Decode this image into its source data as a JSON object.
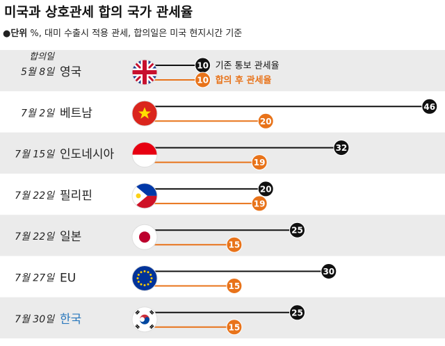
{
  "chart_data": {
    "type": "dumbbell",
    "title": "미국과 상호관세 합의 국가 관세율",
    "subtitle_label": "●단위",
    "subtitle": " %, 대미 수출시 적용 관세, 합의일은 미국 현지시간 기준",
    "date_header": "합의일",
    "dates": [
      "5월 8일",
      "7월 2일",
      "7월 15일",
      "7월 22일",
      "7월 22일",
      "7월 27일",
      "7월 30일"
    ],
    "categories": [
      "영국",
      "베트남",
      "인도네시아",
      "필리핀",
      "일본",
      "EU",
      "한국"
    ],
    "highlight_category": "한국",
    "highlight_color": "#2a78bd",
    "series": [
      {
        "name": "기존 통보 관세율",
        "color": "#111111",
        "values": [
          10,
          46,
          32,
          20,
          25,
          30,
          25
        ]
      },
      {
        "name": "합의 후 관세율",
        "color": "#e8731a",
        "values": [
          10,
          20,
          19,
          19,
          15,
          15,
          15
        ]
      }
    ]
  }
}
